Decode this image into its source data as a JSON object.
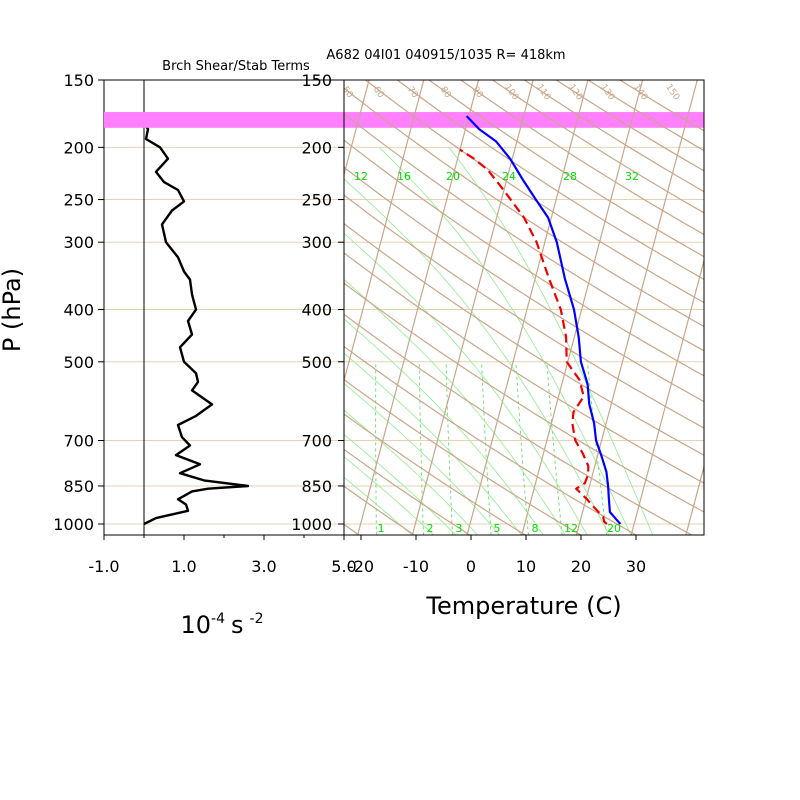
{
  "chart_data": [
    {
      "type": "line",
      "title": "Brch Shear/Stab Terms",
      "xlabel_base": "10",
      "xlabel_exp1": "-4",
      "xlabel_unit": "s",
      "xlabel_exp2": "-2",
      "ylabel": "P (hPa)",
      "x_ticks": [
        "-1.0",
        "1.0",
        "3.0",
        "5.0"
      ],
      "x_tick_values": [
        -1,
        1,
        3,
        5
      ],
      "xlim": [
        -1,
        5
      ],
      "y_ticks": [
        "150",
        "200",
        "250",
        "300",
        "400",
        "500",
        "700",
        "850",
        "1000"
      ],
      "y_tick_values": [
        150,
        200,
        250,
        300,
        400,
        500,
        700,
        850,
        1000
      ],
      "ylim": [
        150,
        1000
      ],
      "y_scale": "log",
      "zero_line_x": 0,
      "series": [
        {
          "color": "#000000",
          "points": [
            [
              0.0,
              180
            ],
            [
              0.1,
              185
            ],
            [
              0.05,
              193
            ],
            [
              0.4,
              200
            ],
            [
              0.6,
              210
            ],
            [
              0.3,
              222
            ],
            [
              0.5,
              232
            ],
            [
              0.85,
              240
            ],
            [
              1.0,
              252
            ],
            [
              0.7,
              262
            ],
            [
              0.45,
              278
            ],
            [
              0.55,
              300
            ],
            [
              0.85,
              320
            ],
            [
              1.0,
              340
            ],
            [
              1.15,
              352
            ],
            [
              1.2,
              375
            ],
            [
              1.3,
              400
            ],
            [
              1.1,
              420
            ],
            [
              1.2,
              445
            ],
            [
              0.9,
              470
            ],
            [
              1.0,
              500
            ],
            [
              1.3,
              525
            ],
            [
              1.35,
              545
            ],
            [
              1.2,
              565
            ],
            [
              1.7,
              600
            ],
            [
              1.3,
              630
            ],
            [
              0.85,
              655
            ],
            [
              0.95,
              690
            ],
            [
              1.15,
              715
            ],
            [
              0.8,
              745
            ],
            [
              1.4,
              775
            ],
            [
              0.9,
              805
            ],
            [
              1.5,
              830
            ],
            [
              2.6,
              850
            ],
            [
              1.6,
              860
            ],
            [
              1.2,
              870
            ],
            [
              0.85,
              900
            ],
            [
              1.05,
              920
            ],
            [
              1.1,
              945
            ],
            [
              0.3,
              975
            ],
            [
              0.0,
              1000
            ]
          ]
        }
      ]
    },
    {
      "type": "line",
      "title": "A682 04I01 040915/1035 R= 418km",
      "xlabel": "Temperature (C)",
      "x_ticks": [
        "-20",
        "-10",
        "0",
        "10",
        "20",
        "30"
      ],
      "x_tick_values": [
        -20,
        -10,
        0,
        10,
        20,
        30
      ],
      "xlim": [
        -24,
        40
      ],
      "y_ticks": [
        "150",
        "200",
        "250",
        "300",
        "400",
        "500",
        "700",
        "850",
        "1000"
      ],
      "y_tick_values": [
        150,
        200,
        250,
        300,
        400,
        500,
        700,
        850,
        1000
      ],
      "ylim": [
        150,
        1050
      ],
      "y_scale": "log",
      "skew": "skew-T",
      "highlight_band_hPa": [
        172,
        184
      ],
      "highlight_color": "#ff80ff",
      "mixing_ratio_labels": [
        "1",
        "2",
        "3",
        "5",
        "8",
        "12",
        "20"
      ],
      "upper_mixing_labels": [
        "12",
        "16",
        "20",
        "24",
        "28",
        "32"
      ],
      "theta_labels": [
        "50",
        "60",
        "70",
        "80",
        "90",
        "100",
        "110",
        "120",
        "130",
        "140",
        "150"
      ],
      "series": [
        {
          "color": "#0000ff",
          "style": "solid",
          "points": [
            [
              27.5,
              1000
            ],
            [
              26.5,
              980
            ],
            [
              25.0,
              950
            ],
            [
              24.2,
              900
            ],
            [
              23.4,
              850
            ],
            [
              22.4,
              800
            ],
            [
              20.8,
              750
            ],
            [
              19.0,
              700
            ],
            [
              17.8,
              650
            ],
            [
              16.0,
              600
            ],
            [
              14.7,
              550
            ],
            [
              12.4,
              500
            ],
            [
              10.8,
              450
            ],
            [
              8.6,
              400
            ],
            [
              5.4,
              350
            ],
            [
              2.2,
              300
            ],
            [
              -0.6,
              270
            ],
            [
              -3.7,
              250
            ],
            [
              -7.0,
              230
            ],
            [
              -10.4,
              210
            ],
            [
              -13.8,
              195
            ],
            [
              -17.5,
              185
            ],
            [
              -20.4,
              175
            ]
          ]
        },
        {
          "color": "#ee0000",
          "style": "dashed",
          "points": [
            [
              25.0,
              1000
            ],
            [
              24.4,
              990
            ],
            [
              24.0,
              970
            ],
            [
              21.8,
              930
            ],
            [
              20.2,
              900
            ],
            [
              17.7,
              860
            ],
            [
              19.0,
              840
            ],
            [
              19.2,
              810
            ],
            [
              18.8,
              780
            ],
            [
              17.2,
              740
            ],
            [
              15.2,
              700
            ],
            [
              13.8,
              650
            ],
            [
              13.5,
              620
            ],
            [
              14.6,
              580
            ],
            [
              13.0,
              540
            ],
            [
              9.8,
              500
            ],
            [
              8.5,
              450
            ],
            [
              6.2,
              400
            ],
            [
              2.5,
              350
            ],
            [
              -1.5,
              300
            ],
            [
              -5.0,
              270
            ],
            [
              -8.3,
              250
            ],
            [
              -11.0,
              235
            ],
            [
              -14.0,
              220
            ],
            [
              -17.0,
              210
            ],
            [
              -20.0,
              202
            ]
          ]
        }
      ]
    }
  ]
}
